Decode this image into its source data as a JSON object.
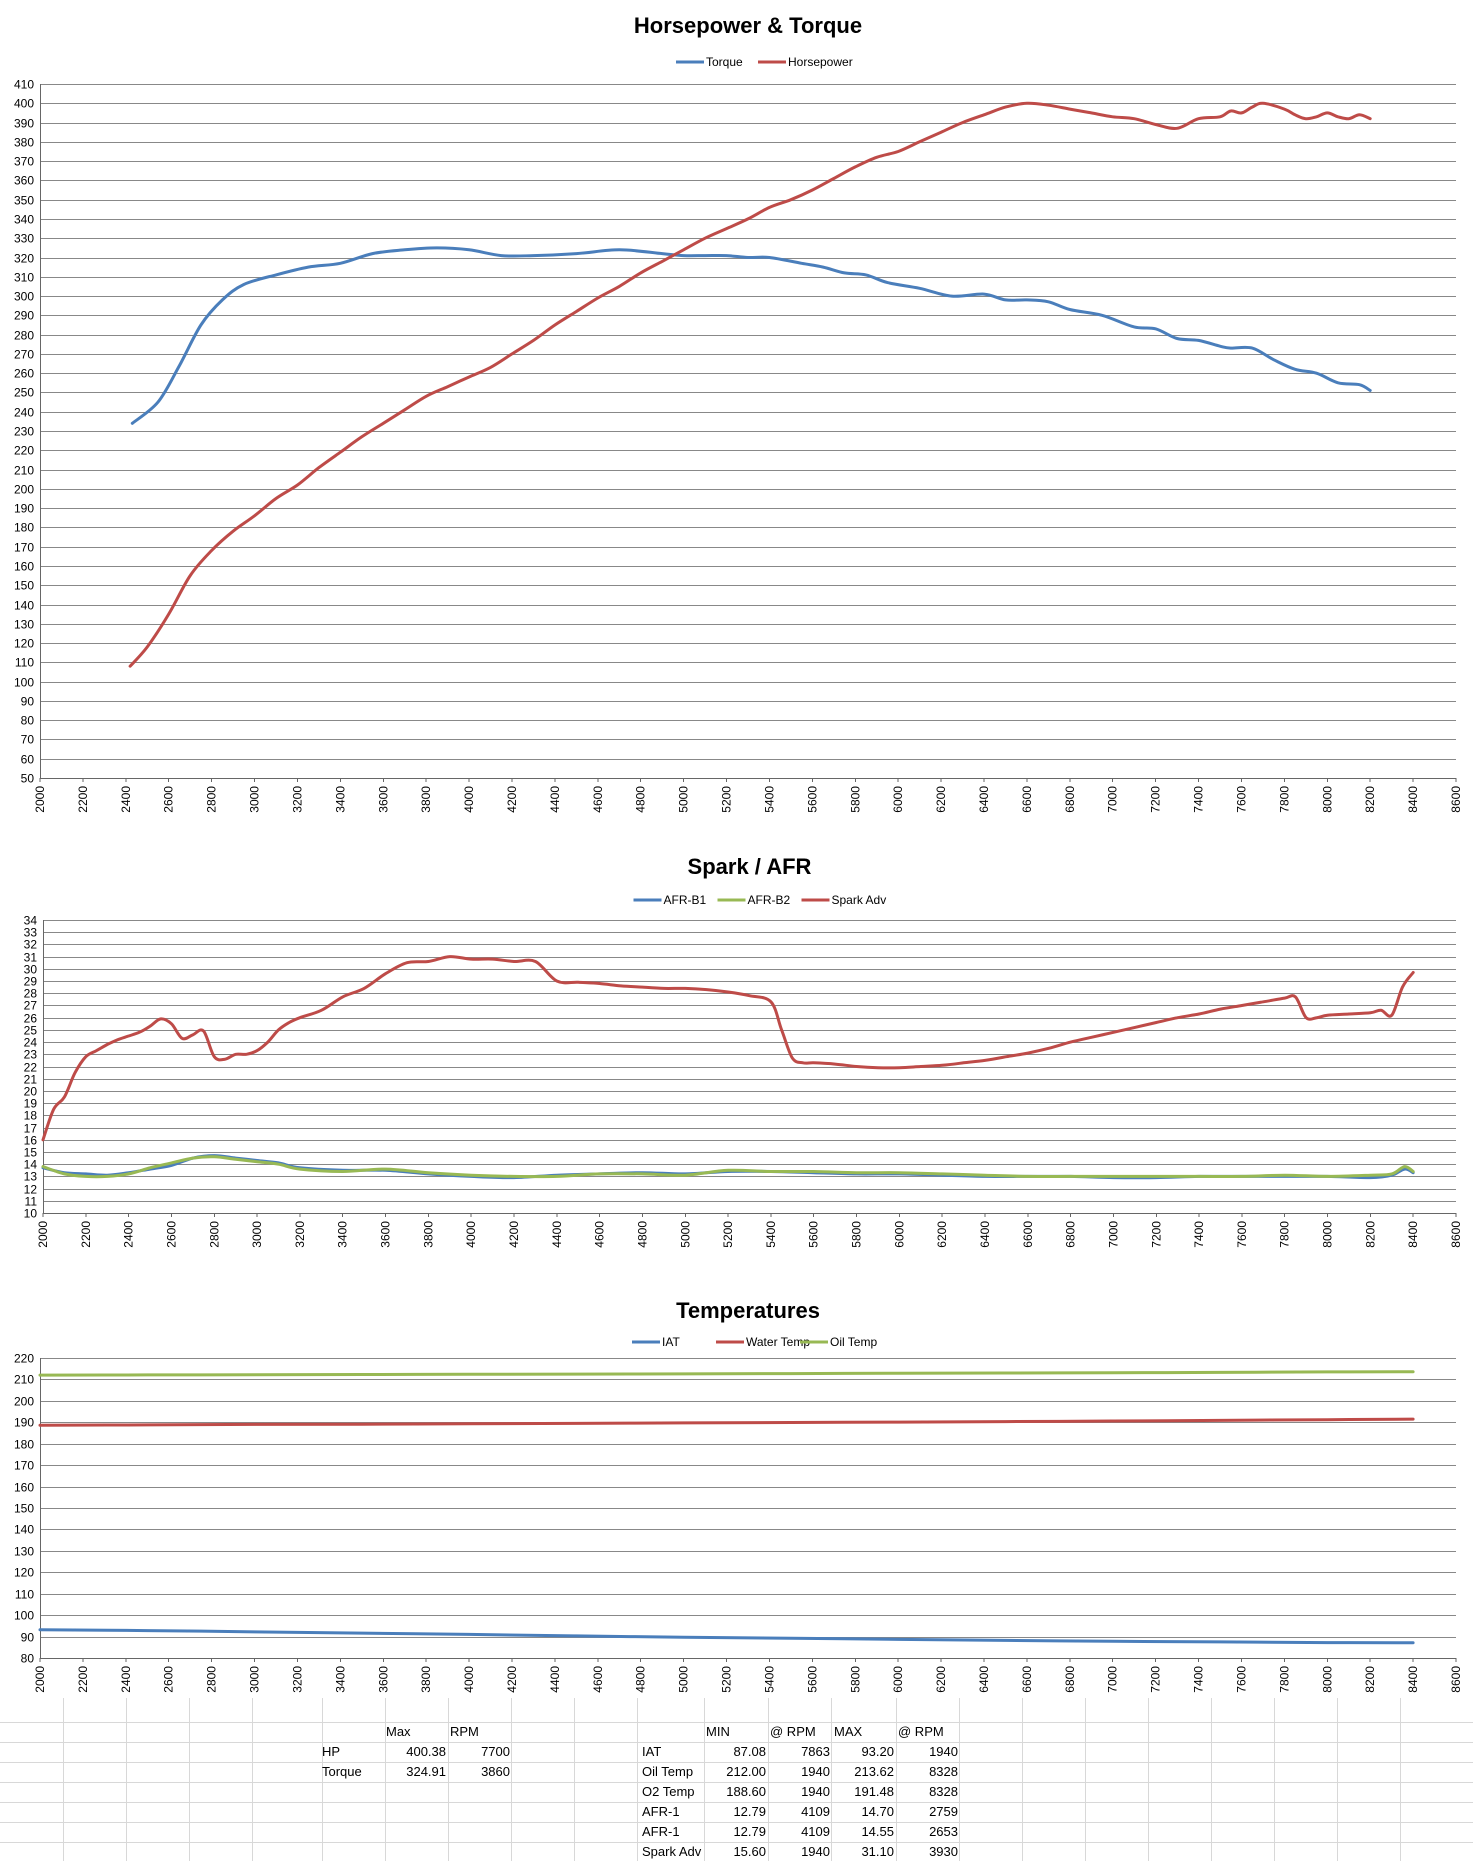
{
  "charts": {
    "hp_torque": {
      "title": "Horsepower & Torque",
      "legend_position": "top-center",
      "grid": true,
      "xlim": [
        2000,
        8600
      ],
      "xticks_step": 200,
      "ylim": [
        50,
        410
      ],
      "yticks_step": 10,
      "series": [
        {
          "name": "Torque",
          "color": "#4a7ebb"
        },
        {
          "name": "Horsepower",
          "color": "#be4b48"
        }
      ]
    },
    "spark_afr": {
      "title": "Spark / AFR",
      "legend_position": "top-center",
      "grid": true,
      "xlim": [
        2000,
        8600
      ],
      "xticks_step": 200,
      "ylim": [
        10,
        34
      ],
      "yticks_step": 1,
      "series": [
        {
          "name": "AFR-B1",
          "color": "#4a7ebb"
        },
        {
          "name": "AFR-B2",
          "color": "#98b954"
        },
        {
          "name": "Spark Adv",
          "color": "#be4b48"
        }
      ]
    },
    "temperatures": {
      "title": "Temperatures",
      "legend_position": "top-center",
      "grid": true,
      "xlim": [
        2000,
        8600
      ],
      "xticks_step": 200,
      "ylim": [
        80,
        220
      ],
      "yticks_step": 10,
      "series": [
        {
          "name": "IAT",
          "color": "#4a7ebb"
        },
        {
          "name": "Water Temp",
          "color": "#be4b48"
        },
        {
          "name": "Oil Temp",
          "color": "#98b954"
        }
      ]
    }
  },
  "chart_data": [
    {
      "type": "line",
      "title": "Horsepower & Torque",
      "xlabel": "",
      "ylabel": "",
      "xlim": [
        2000,
        8600
      ],
      "ylim": [
        50,
        410
      ],
      "series": [
        {
          "name": "Torque",
          "x": [
            2430,
            2550,
            2650,
            2750,
            2850,
            2950,
            3100,
            3250,
            3400,
            3550,
            3700,
            3850,
            4000,
            4150,
            4300,
            4500,
            4700,
            4900,
            5000,
            5100,
            5200,
            5300,
            5400,
            5550,
            5650,
            5750,
            5850,
            5950,
            6100,
            6250,
            6400,
            6500,
            6600,
            6700,
            6800,
            6950,
            7100,
            7200,
            7300,
            7400,
            7500,
            7550,
            7650,
            7750,
            7850,
            7950,
            8050,
            8150,
            8200
          ],
          "y": [
            234,
            245,
            264,
            285,
            298,
            306,
            311,
            315,
            317,
            322,
            324,
            325,
            324,
            321,
            321,
            322,
            324,
            322,
            321,
            321,
            321,
            320,
            320,
            317,
            315,
            312,
            311,
            307,
            304,
            300,
            301,
            298,
            298,
            297,
            293,
            290,
            284,
            283,
            278,
            277,
            274,
            273,
            273,
            267,
            262,
            260,
            255,
            254,
            251
          ]
        },
        {
          "name": "Horsepower",
          "x": [
            2420,
            2500,
            2600,
            2700,
            2800,
            2900,
            3000,
            3100,
            3200,
            3300,
            3400,
            3500,
            3600,
            3700,
            3800,
            3900,
            4000,
            4100,
            4200,
            4300,
            4400,
            4500,
            4600,
            4700,
            4800,
            4900,
            5000,
            5100,
            5200,
            5300,
            5400,
            5500,
            5600,
            5700,
            5800,
            5900,
            6000,
            6100,
            6200,
            6300,
            6400,
            6500,
            6600,
            6700,
            6800,
            6900,
            7000,
            7100,
            7200,
            7300,
            7400,
            7500,
            7550,
            7600,
            7650,
            7700,
            7800,
            7850,
            7900,
            7950,
            8000,
            8050,
            8100,
            8150,
            8200
          ],
          "y": [
            108,
            118,
            135,
            155,
            168,
            178,
            186,
            195,
            202,
            211,
            219,
            227,
            234,
            241,
            248,
            253,
            258,
            263,
            270,
            277,
            285,
            292,
            299,
            305,
            312,
            318,
            324,
            330,
            335,
            340,
            346,
            350,
            355,
            361,
            367,
            372,
            375,
            380,
            385,
            390,
            394,
            398,
            400,
            399,
            397,
            395,
            393,
            392,
            389,
            387,
            392,
            393,
            396,
            395,
            398,
            400,
            397,
            394,
            392,
            393,
            395,
            393,
            392,
            394,
            392
          ]
        }
      ]
    },
    {
      "type": "line",
      "title": "Spark / AFR",
      "xlabel": "",
      "ylabel": "",
      "xlim": [
        2000,
        8600
      ],
      "ylim": [
        10,
        34
      ],
      "series": [
        {
          "name": "AFR-B1",
          "x": [
            2000,
            2100,
            2200,
            2300,
            2400,
            2500,
            2600,
            2700,
            2800,
            2900,
            3000,
            3100,
            3200,
            3400,
            3600,
            3800,
            4000,
            4200,
            4400,
            4600,
            4800,
            5000,
            5200,
            5400,
            5600,
            5800,
            6000,
            6200,
            6400,
            6600,
            6800,
            7000,
            7200,
            7400,
            7600,
            7800,
            8000,
            8200,
            8300,
            8360,
            8400
          ],
          "y": [
            13.7,
            13.3,
            13.2,
            13.1,
            13.3,
            13.6,
            13.9,
            14.5,
            14.7,
            14.5,
            14.3,
            14.1,
            13.7,
            13.5,
            13.5,
            13.2,
            13.0,
            12.9,
            13.1,
            13.2,
            13.3,
            13.2,
            13.4,
            13.4,
            13.3,
            13.2,
            13.2,
            13.1,
            13.0,
            13.0,
            13.0,
            12.9,
            12.9,
            13.0,
            13.0,
            13.0,
            13.0,
            12.9,
            13.1,
            13.6,
            13.3
          ]
        },
        {
          "name": "AFR-B2",
          "x": [
            2000,
            2100,
            2200,
            2300,
            2400,
            2500,
            2600,
            2700,
            2800,
            2900,
            3000,
            3100,
            3200,
            3400,
            3600,
            3800,
            4000,
            4200,
            4400,
            4600,
            4800,
            5000,
            5200,
            5400,
            5600,
            5800,
            6000,
            6200,
            6400,
            6600,
            6800,
            7000,
            7200,
            7400,
            7600,
            7800,
            8000,
            8200,
            8300,
            8360,
            8400
          ],
          "y": [
            13.8,
            13.2,
            13.0,
            13.0,
            13.2,
            13.7,
            14.1,
            14.5,
            14.6,
            14.4,
            14.2,
            14.0,
            13.6,
            13.4,
            13.6,
            13.3,
            13.1,
            13.0,
            13.0,
            13.2,
            13.2,
            13.1,
            13.5,
            13.4,
            13.4,
            13.3,
            13.3,
            13.2,
            13.1,
            13.0,
            13.0,
            13.0,
            13.0,
            13.0,
            13.0,
            13.1,
            13.0,
            13.1,
            13.2,
            13.8,
            13.4
          ]
        },
        {
          "name": "Spark Adv",
          "x": [
            2000,
            2050,
            2100,
            2150,
            2200,
            2250,
            2300,
            2350,
            2400,
            2450,
            2500,
            2550,
            2600,
            2650,
            2700,
            2750,
            2800,
            2850,
            2900,
            2950,
            3000,
            3050,
            3100,
            3150,
            3200,
            3300,
            3400,
            3500,
            3600,
            3700,
            3800,
            3900,
            4000,
            4100,
            4200,
            4300,
            4400,
            4500,
            4600,
            4700,
            4800,
            4900,
            5000,
            5100,
            5200,
            5300,
            5400,
            5450,
            5500,
            5550,
            5600,
            5700,
            5800,
            5900,
            6000,
            6100,
            6200,
            6300,
            6400,
            6500,
            6600,
            6700,
            6800,
            6900,
            7000,
            7100,
            7200,
            7300,
            7400,
            7500,
            7600,
            7700,
            7800,
            7850,
            7900,
            7950,
            8000,
            8100,
            8200,
            8250,
            8300,
            8350,
            8400
          ],
          "y": [
            16.0,
            18.5,
            19.5,
            21.5,
            22.8,
            23.3,
            23.8,
            24.2,
            24.5,
            24.8,
            25.3,
            25.9,
            25.5,
            24.3,
            24.6,
            24.9,
            22.8,
            22.6,
            23.0,
            23.0,
            23.3,
            24.0,
            25.0,
            25.6,
            26.0,
            26.6,
            27.7,
            28.4,
            29.6,
            30.5,
            30.6,
            31.0,
            30.8,
            30.8,
            30.6,
            30.6,
            29.0,
            28.9,
            28.8,
            28.6,
            28.5,
            28.4,
            28.4,
            28.3,
            28.1,
            27.8,
            27.3,
            25.0,
            22.7,
            22.3,
            22.3,
            22.2,
            22.0,
            21.9,
            21.9,
            22.0,
            22.1,
            22.3,
            22.5,
            22.8,
            23.1,
            23.5,
            24.0,
            24.4,
            24.8,
            25.2,
            25.6,
            26.0,
            26.3,
            26.7,
            27.0,
            27.3,
            27.6,
            27.7,
            26.0,
            26.0,
            26.2,
            26.3,
            26.4,
            26.6,
            26.2,
            28.5,
            29.7
          ]
        }
      ]
    },
    {
      "type": "line",
      "title": "Temperatures",
      "xlabel": "",
      "ylabel": "",
      "xlim": [
        2000,
        8600
      ],
      "ylim": [
        80,
        220
      ],
      "series": [
        {
          "name": "IAT",
          "x": [
            2000,
            2500,
            3000,
            3500,
            4000,
            4500,
            5000,
            5500,
            6000,
            6500,
            7000,
            7500,
            8000,
            8400
          ],
          "y": [
            93.2,
            92.8,
            92.2,
            91.6,
            91.0,
            90.3,
            89.7,
            89.2,
            88.7,
            88.2,
            87.8,
            87.5,
            87.2,
            87.1
          ]
        },
        {
          "name": "Water Temp",
          "x": [
            2000,
            2500,
            3000,
            3500,
            4000,
            4500,
            5000,
            5500,
            6000,
            6500,
            7000,
            7500,
            8000,
            8400
          ],
          "y": [
            188.6,
            188.8,
            189.0,
            189.1,
            189.3,
            189.5,
            189.7,
            189.9,
            190.1,
            190.3,
            190.6,
            190.9,
            191.2,
            191.5
          ]
        },
        {
          "name": "Oil Temp",
          "x": [
            2000,
            2500,
            3000,
            3500,
            4000,
            4500,
            5000,
            5500,
            6000,
            6500,
            7000,
            7500,
            8000,
            8400
          ],
          "y": [
            212.0,
            212.1,
            212.2,
            212.3,
            212.4,
            212.5,
            212.6,
            212.7,
            212.9,
            213.0,
            213.1,
            213.3,
            213.5,
            213.6
          ]
        }
      ]
    }
  ],
  "summary": {
    "hp_table": {
      "headers": [
        "Max",
        "RPM"
      ],
      "rows": [
        {
          "label": "HP",
          "max": "400.38",
          "rpm": "7700"
        },
        {
          "label": "Torque",
          "max": "324.91",
          "rpm": "3860"
        }
      ]
    },
    "stats_table": {
      "headers": [
        "MIN",
        "@ RPM",
        "MAX",
        "@ RPM"
      ],
      "rows": [
        {
          "label": "IAT",
          "min": "87.08",
          "min_rpm": "7863",
          "max": "93.20",
          "max_rpm": "1940"
        },
        {
          "label": "Oil Temp",
          "min": "212.00",
          "min_rpm": "1940",
          "max": "213.62",
          "max_rpm": "8328"
        },
        {
          "label": "O2 Temp",
          "min": "188.60",
          "min_rpm": "1940",
          "max": "191.48",
          "max_rpm": "8328"
        },
        {
          "label": "AFR-1",
          "min": "12.79",
          "min_rpm": "4109",
          "max": "14.70",
          "max_rpm": "2759"
        },
        {
          "label": "AFR-1",
          "min": "12.79",
          "min_rpm": "4109",
          "max": "14.55",
          "max_rpm": "2653"
        },
        {
          "label": "Spark Adv",
          "min": "15.60",
          "min_rpm": "1940",
          "max": "31.10",
          "max_rpm": "3930"
        }
      ]
    }
  }
}
